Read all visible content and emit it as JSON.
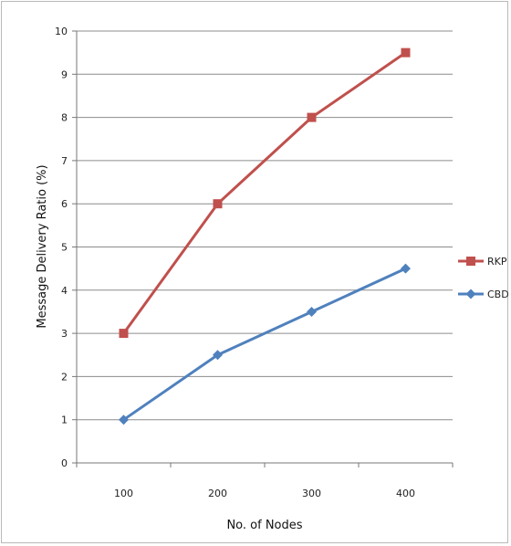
{
  "chart_data": {
    "type": "line",
    "title": "",
    "xlabel": "No. of Nodes",
    "ylabel": "Message Delivery Ratio (%)",
    "categories": [
      "100",
      "200",
      "300",
      "400"
    ],
    "ylim": [
      0,
      10
    ],
    "yticks": [
      "0",
      "1",
      "2",
      "3",
      "4",
      "5",
      "6",
      "7",
      "8",
      "9",
      "10"
    ],
    "grid": true,
    "legend_position": "right",
    "series": [
      {
        "name": "RKP",
        "values": [
          3,
          6,
          8,
          9.5
        ],
        "color": "#c0504d",
        "marker": "square"
      },
      {
        "name": "CBDS",
        "values": [
          1,
          2.5,
          3.5,
          4.5
        ],
        "color": "#4f81bd",
        "marker": "diamond"
      }
    ]
  }
}
